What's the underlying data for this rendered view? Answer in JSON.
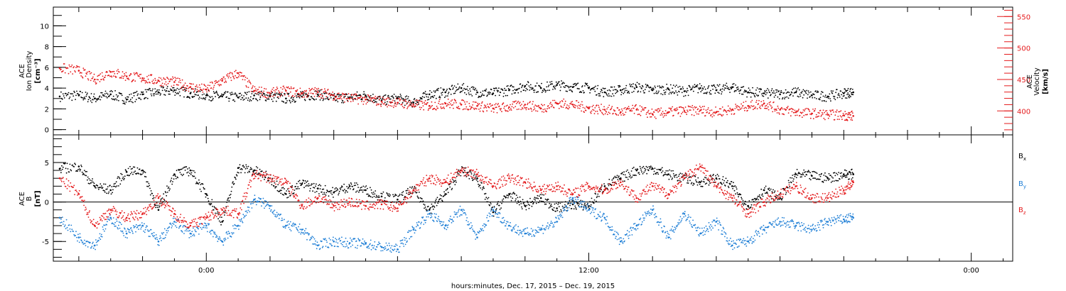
{
  "xlabel": "hours:minutes, Dec. 17, 2015 – Dec. 19, 2015",
  "colors": {
    "black": "#000000",
    "red": "#e41a1c",
    "blue": "#1f7fd6",
    "axis": "#000000"
  },
  "chart_data": [
    {
      "type": "scatter",
      "x_unit": "hours since Dec. 17, 2015 00:00",
      "xlim": [
        -4.8,
        25.3
      ],
      "x_ticks": [
        {
          "x": 0,
          "label": "0:00"
        },
        {
          "x": 12,
          "label": "12:00"
        },
        {
          "x": 24,
          "label": "0:00"
        }
      ],
      "left_axis": {
        "label_lines": [
          "ACE",
          "Ion Density",
          "[cm⁻³]"
        ],
        "ylim": [
          -0.5,
          11.8
        ],
        "ticks": [
          0,
          2,
          4,
          6,
          8,
          10
        ]
      },
      "right_axis": {
        "label_lines": [
          "ACE",
          "Velocity",
          "[km/s]"
        ],
        "ylim": [
          362,
          565
        ],
        "ticks": [
          400,
          450,
          500,
          550
        ]
      },
      "series": [
        {
          "color": "#000000",
          "axis": "left",
          "x": [
            -4.6,
            -4.0,
            -3.5,
            -3.0,
            -2.5,
            -2.0,
            -1.5,
            -1.0,
            -0.5,
            0.0,
            0.5,
            1.0,
            1.5,
            2.0,
            2.5,
            3.0,
            3.5,
            4.0,
            4.5,
            5.0,
            5.5,
            6.0,
            6.5,
            7.0,
            7.5,
            8.0,
            8.5,
            9.0,
            9.5,
            10.0,
            10.5,
            11.0,
            11.5,
            12.0,
            12.5,
            13.0,
            13.5,
            14.0,
            14.5,
            15.0,
            15.5,
            16.0,
            16.5,
            17.0,
            17.5,
            18.0,
            18.5,
            19.0,
            19.5,
            20.0,
            20.3
          ],
          "values": [
            3.2,
            3.3,
            3.0,
            3.4,
            2.9,
            3.4,
            3.6,
            3.8,
            3.5,
            3.3,
            3.2,
            3.1,
            3.3,
            3.2,
            3.0,
            3.2,
            3.4,
            3.0,
            3.1,
            3.3,
            2.8,
            3.0,
            2.6,
            3.4,
            3.6,
            4.0,
            3.6,
            3.5,
            3.8,
            4.2,
            4.0,
            4.3,
            4.1,
            4.0,
            3.6,
            3.8,
            4.1,
            3.8,
            3.9,
            3.7,
            4.0,
            3.8,
            4.1,
            3.6,
            3.5,
            3.4,
            3.6,
            3.3,
            3.2,
            3.5,
            3.6
          ]
        },
        {
          "color": "#e41a1c",
          "axis": "right",
          "x": [
            -4.6,
            -4.0,
            -3.5,
            -3.0,
            -2.5,
            -2.0,
            -1.5,
            -1.0,
            -0.5,
            0.0,
            0.5,
            1.0,
            1.5,
            2.0,
            2.5,
            3.0,
            3.5,
            4.0,
            4.5,
            5.0,
            5.5,
            6.0,
            6.5,
            7.0,
            7.5,
            8.0,
            8.5,
            9.0,
            9.5,
            10.0,
            10.5,
            11.0,
            11.5,
            12.0,
            12.5,
            13.0,
            13.5,
            14.0,
            14.5,
            15.0,
            15.5,
            16.0,
            16.5,
            17.0,
            17.5,
            18.0,
            18.5,
            19.0,
            19.5,
            20.0,
            20.3
          ],
          "values": [
            468,
            464,
            450,
            462,
            455,
            452,
            448,
            446,
            438,
            434,
            448,
            460,
            432,
            428,
            432,
            428,
            430,
            425,
            420,
            418,
            415,
            413,
            410,
            408,
            412,
            410,
            408,
            404,
            406,
            410,
            404,
            412,
            410,
            404,
            402,
            398,
            402,
            395,
            398,
            400,
            401,
            398,
            402,
            408,
            412,
            402,
            398,
            396,
            394,
            393,
            392
          ]
        }
      ]
    },
    {
      "type": "scatter",
      "x_unit": "hours since Dec. 17, 2015 00:00",
      "xlim": [
        -4.8,
        25.3
      ],
      "x_ticks": [
        {
          "x": 0,
          "label": "0:00"
        },
        {
          "x": 12,
          "label": "12:00"
        },
        {
          "x": 24,
          "label": "0:00"
        }
      ],
      "left_axis": {
        "label_lines": [
          "ACE",
          "B",
          "[nT]"
        ],
        "ylim": [
          -7.5,
          8.5
        ],
        "ticks": [
          -5,
          0,
          5
        ]
      },
      "zero_line": true,
      "series": [
        {
          "name": "Bx",
          "color": "#000000",
          "x": [
            -4.6,
            -4.0,
            -3.5,
            -3.0,
            -2.5,
            -2.0,
            -1.5,
            -1.0,
            -0.5,
            0.0,
            0.5,
            1.0,
            1.5,
            2.0,
            2.5,
            3.0,
            3.5,
            4.0,
            4.5,
            5.0,
            5.5,
            6.0,
            6.5,
            7.0,
            7.5,
            8.0,
            8.5,
            9.0,
            9.5,
            10.0,
            10.5,
            11.0,
            11.5,
            12.0,
            12.5,
            13.0,
            13.5,
            14.0,
            14.5,
            15.0,
            15.5,
            16.0,
            16.5,
            17.0,
            17.5,
            18.0,
            18.5,
            19.0,
            19.5,
            20.0,
            20.3
          ],
          "values": [
            4.2,
            4.5,
            2.0,
            1.5,
            3.8,
            4.0,
            -1.0,
            3.5,
            4.0,
            1.0,
            -2.5,
            4.3,
            4.0,
            3.0,
            1.0,
            2.3,
            1.7,
            1.2,
            2.0,
            1.5,
            0.7,
            0.3,
            1.5,
            -1.0,
            1.0,
            4.0,
            3.0,
            -1.3,
            1.0,
            -0.5,
            0.5,
            -0.8,
            -0.3,
            -0.5,
            2.0,
            3.0,
            4.0,
            4.2,
            3.5,
            3.0,
            2.5,
            3.0,
            2.0,
            -0.5,
            1.5,
            0.5,
            3.5,
            3.3,
            3.0,
            3.5,
            3.5
          ]
        },
        {
          "name": "By",
          "color": "#1f7fd6",
          "x": [
            -4.6,
            -4.0,
            -3.5,
            -3.0,
            -2.5,
            -2.0,
            -1.5,
            -1.0,
            -0.5,
            0.0,
            0.5,
            1.0,
            1.5,
            2.0,
            2.5,
            3.0,
            3.5,
            4.0,
            4.5,
            5.0,
            5.5,
            6.0,
            6.5,
            7.0,
            7.5,
            8.0,
            8.5,
            9.0,
            9.5,
            10.0,
            10.5,
            11.0,
            11.5,
            12.0,
            12.5,
            13.0,
            13.5,
            14.0,
            14.5,
            15.0,
            15.5,
            16.0,
            16.5,
            17.0,
            17.5,
            18.0,
            18.5,
            19.0,
            19.5,
            20.0,
            20.3
          ],
          "values": [
            -2.0,
            -4.5,
            -5.5,
            -2.0,
            -4.0,
            -3.0,
            -5.0,
            -2.5,
            -4.0,
            -3.0,
            -5.0,
            -3.0,
            0.3,
            -0.5,
            -3.0,
            -3.5,
            -5.5,
            -5.0,
            -5.2,
            -5.3,
            -5.7,
            -6.0,
            -3.5,
            -1.5,
            -3.0,
            -1.0,
            -4.5,
            -1.0,
            -3.0,
            -4.0,
            -3.5,
            -2.5,
            0.5,
            -1.0,
            -2.0,
            -5.0,
            -3.0,
            -1.0,
            -4.5,
            -1.5,
            -4.0,
            -2.5,
            -5.5,
            -5.0,
            -3.5,
            -2.5,
            -3.0,
            -3.5,
            -2.5,
            -2.2,
            -2.0
          ]
        },
        {
          "name": "Bz",
          "color": "#e41a1c",
          "x": [
            -4.6,
            -4.0,
            -3.5,
            -3.0,
            -2.5,
            -2.0,
            -1.5,
            -1.0,
            -0.5,
            0.0,
            0.5,
            1.0,
            1.5,
            2.0,
            2.5,
            3.0,
            3.5,
            4.0,
            4.5,
            5.0,
            5.5,
            6.0,
            6.5,
            7.0,
            7.5,
            8.0,
            8.5,
            9.0,
            9.5,
            10.0,
            10.5,
            11.0,
            11.5,
            12.0,
            12.5,
            13.0,
            13.5,
            14.0,
            14.5,
            15.0,
            15.5,
            16.0,
            16.5,
            17.0,
            17.5,
            18.0,
            18.5,
            19.0,
            19.5,
            20.0,
            20.3
          ],
          "values": [
            3.0,
            1.0,
            -3.0,
            -1.0,
            -2.0,
            -1.5,
            0.5,
            -1.5,
            -3.0,
            -2.0,
            -1.0,
            -1.5,
            3.5,
            3.0,
            2.5,
            -0.5,
            0.5,
            -0.5,
            0.0,
            -0.5,
            -0.3,
            -0.8,
            1.5,
            3.0,
            2.5,
            4.0,
            3.5,
            2.0,
            3.0,
            2.5,
            1.5,
            2.0,
            1.0,
            2.0,
            1.5,
            2.5,
            0.5,
            2.0,
            1.0,
            3.0,
            4.5,
            2.0,
            0.5,
            -1.5,
            0.0,
            1.0,
            2.0,
            0.5,
            0.5,
            1.5,
            2.5
          ]
        }
      ]
    }
  ]
}
